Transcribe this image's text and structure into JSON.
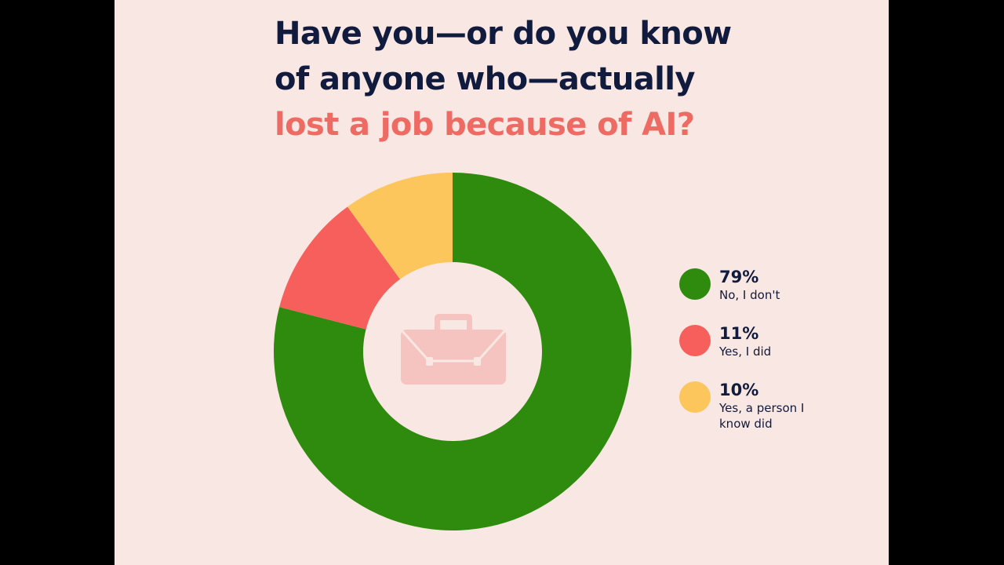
{
  "title": {
    "line1": "Have you—or do you know",
    "line2": "of anyone who—actually",
    "line3": "lost a job because of AI?"
  },
  "chart_data": {
    "type": "pie",
    "variant": "donut",
    "title": "Have you—or do you know of anyone who—actually lost a job because of AI?",
    "slices": [
      {
        "value_label": "79%",
        "value": 79,
        "label": "No, I don't",
        "color": "#2e8b0e"
      },
      {
        "value_label": "11%",
        "value": 11,
        "label": "Yes, I did",
        "color": "#f75f5c"
      },
      {
        "value_label": "10%",
        "value": 10,
        "label": "Yes, a person I know did",
        "color": "#fcc65c"
      }
    ],
    "legend_position": "right",
    "center_icon": "briefcase-icon",
    "start_angle": "top",
    "direction": "clockwise"
  },
  "colors": {
    "background": "#f8e7e2",
    "title_dark": "#111b3d",
    "title_accent": "#ee6b63",
    "icon": "#f6c4c0"
  }
}
